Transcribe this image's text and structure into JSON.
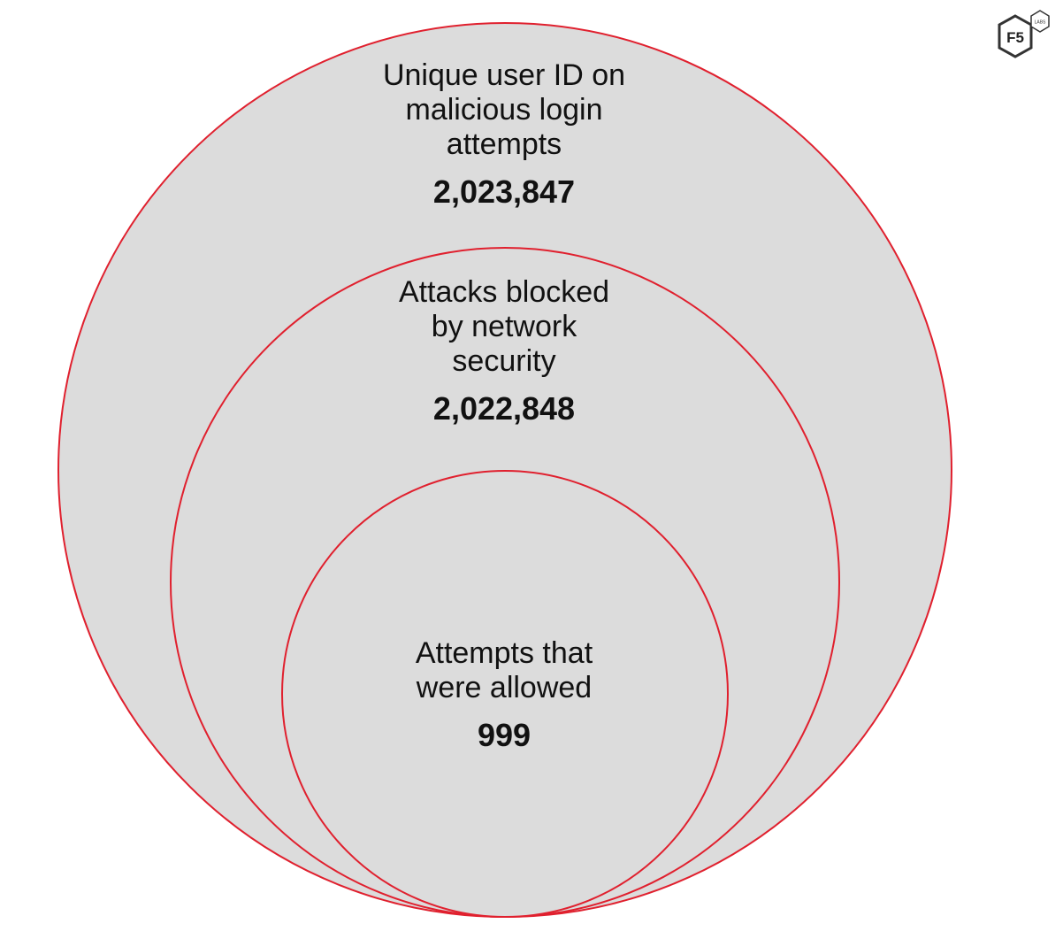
{
  "diagram": {
    "type": "nested-venn",
    "colors": {
      "fill": "#dcdcdc",
      "stroke": "#e0202e",
      "text": "#111111"
    },
    "outer": {
      "lines": [
        "Unique user ID on",
        "malicious login",
        "attempts"
      ],
      "value": "2,023,847"
    },
    "middle": {
      "lines": [
        "Attacks blocked",
        "by network",
        "security"
      ],
      "value": "2,022,848"
    },
    "inner": {
      "lines": [
        "Attempts that",
        "were allowed"
      ],
      "value": "999"
    }
  },
  "logo": {
    "text": "F5",
    "subtext": "LABS",
    "icon": "f5-labs-hexagon-logo"
  }
}
